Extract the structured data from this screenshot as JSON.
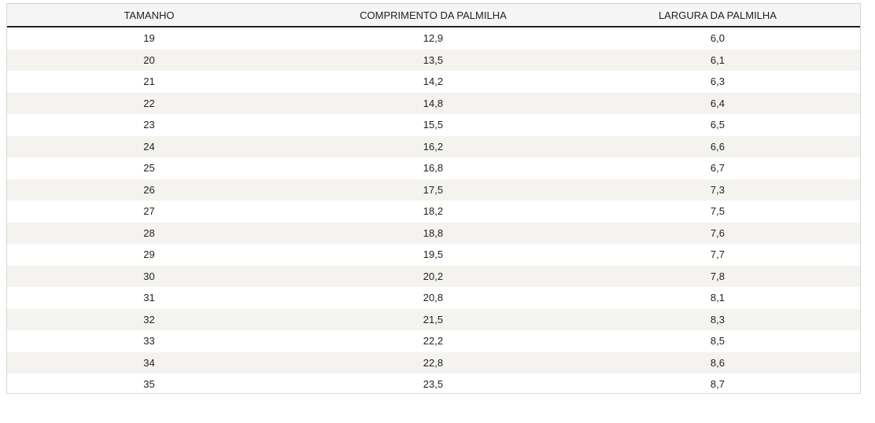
{
  "table": {
    "headers": [
      "TAMANHO",
      "COMPRIMENTO DA PALMILHA",
      "LARGURA DA PALMILHA"
    ],
    "rows": [
      [
        "19",
        "12,9",
        "6,0"
      ],
      [
        "20",
        "13,5",
        "6,1"
      ],
      [
        "21",
        "14,2",
        "6,3"
      ],
      [
        "22",
        "14,8",
        "6,4"
      ],
      [
        "23",
        "15,5",
        "6,5"
      ],
      [
        "24",
        "16,2",
        "6,6"
      ],
      [
        "25",
        "16,8",
        "6,7"
      ],
      [
        "26",
        "17,5",
        "7,3"
      ],
      [
        "27",
        "18,2",
        "7,5"
      ],
      [
        "28",
        "18,8",
        "7,6"
      ],
      [
        "29",
        "19,5",
        "7,7"
      ],
      [
        "30",
        "20,2",
        "7,8"
      ],
      [
        "31",
        "20,8",
        "8,1"
      ],
      [
        "32",
        "21,5",
        "8,3"
      ],
      [
        "33",
        "22,2",
        "8,5"
      ],
      [
        "34",
        "22,8",
        "8,6"
      ],
      [
        "35",
        "23,5",
        "8,7"
      ]
    ]
  }
}
